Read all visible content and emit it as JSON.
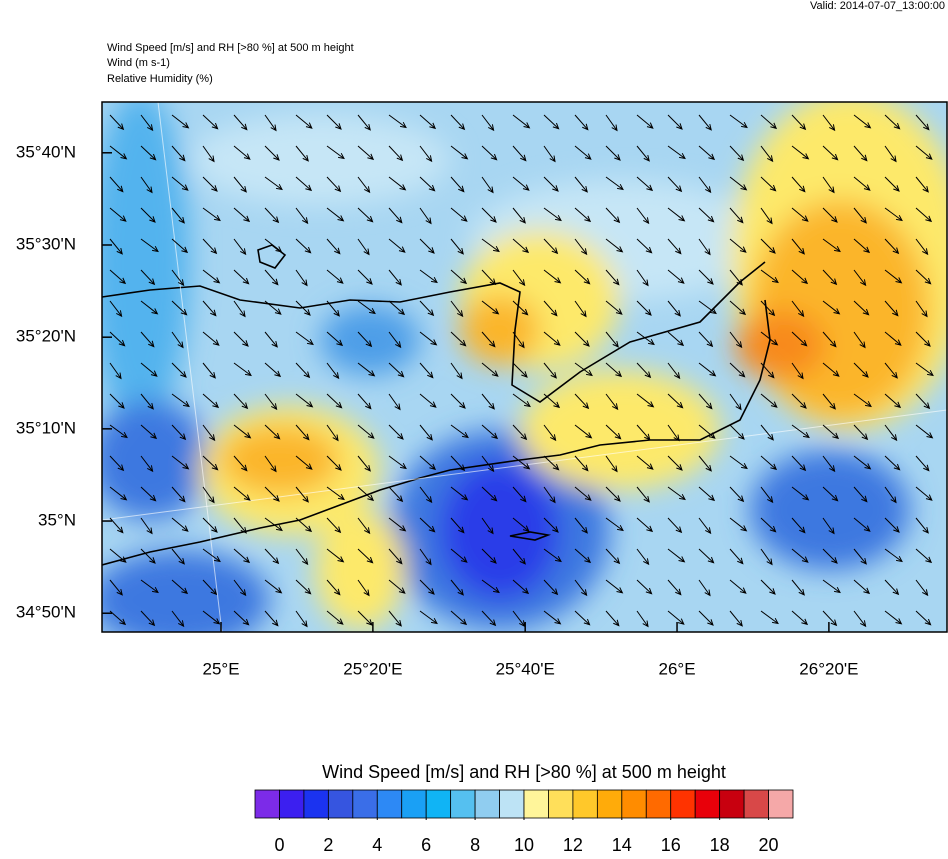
{
  "header": {
    "valid": "Valid: 2014-07-07_13:00:00",
    "titles": [
      "Wind Speed [m/s] and RH [>80 %] at 500 m height",
      "Wind   (m s-1)",
      "Relative Humidity    (%)"
    ]
  },
  "map": {
    "xlim": [
      24.739,
      26.592
    ],
    "ylim": [
      34.799,
      35.759
    ],
    "xticks": [
      {
        "value": 25,
        "label": "25°E"
      },
      {
        "value": 25.333,
        "label": "25°20'E"
      },
      {
        "value": 25.667,
        "label": "25°40'E"
      },
      {
        "value": 26,
        "label": "26°E"
      },
      {
        "value": 26.333,
        "label": "26°20'E"
      }
    ],
    "yticks": [
      {
        "value": 34.833,
        "label": "34°50'N"
      },
      {
        "value": 35,
        "label": "35°N"
      },
      {
        "value": 35.167,
        "label": "35°10'N"
      },
      {
        "value": 35.333,
        "label": "35°20'N"
      },
      {
        "value": 35.5,
        "label": "35°30'N"
      },
      {
        "value": 35.667,
        "label": "35°40'N"
      }
    ]
  },
  "colorbar": {
    "title": "Wind Speed [m/s] and RH [>80 %] at 500 m height",
    "lim": [
      -1,
      21
    ],
    "ticks": [
      0,
      2,
      4,
      6,
      8,
      10,
      12,
      14,
      16,
      18,
      20
    ],
    "colors": [
      "#7c2be8",
      "#3c1ff0",
      "#1b33f0",
      "#3655e0",
      "#3a6ee8",
      "#2d89f5",
      "#1aa0f5",
      "#10b4f5",
      "#55c0f0",
      "#90cdf0",
      "#bde3f5",
      "#fff59a",
      "#ffdf5a",
      "#ffc82a",
      "#ffab0a",
      "#ff8c00",
      "#ff6a00",
      "#ff3300",
      "#e8000a",
      "#c8000f",
      "#d84848",
      "#f5a8a8"
    ]
  }
}
